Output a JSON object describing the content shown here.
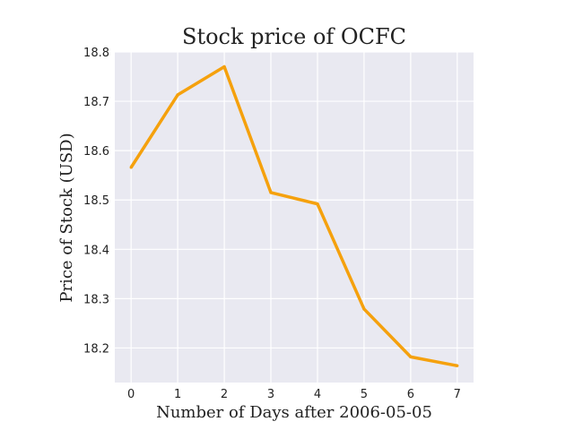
{
  "chart_data": {
    "type": "line",
    "title": "Stock price of OCFC",
    "xlabel": "Number of Days after 2006-05-05",
    "ylabel": "Price of Stock (USD)",
    "x": [
      0,
      1,
      2,
      3,
      4,
      5,
      6,
      7
    ],
    "series": [
      {
        "values": [
          18.566,
          18.713,
          18.77,
          18.515,
          18.492,
          18.279,
          18.182,
          18.164
        ],
        "color": "#f5a10d"
      }
    ],
    "xlim": [
      -0.35,
      7.35
    ],
    "ylim": [
      18.13,
      18.8
    ],
    "x_ticks": [
      "0",
      "1",
      "2",
      "3",
      "4",
      "5",
      "6",
      "7"
    ],
    "y_ticks": [
      "18.2",
      "18.3",
      "18.4",
      "18.5",
      "18.6",
      "18.7",
      "18.8"
    ],
    "grid": true,
    "background": "#e9e9f1",
    "grid_color": "#ffffff"
  }
}
